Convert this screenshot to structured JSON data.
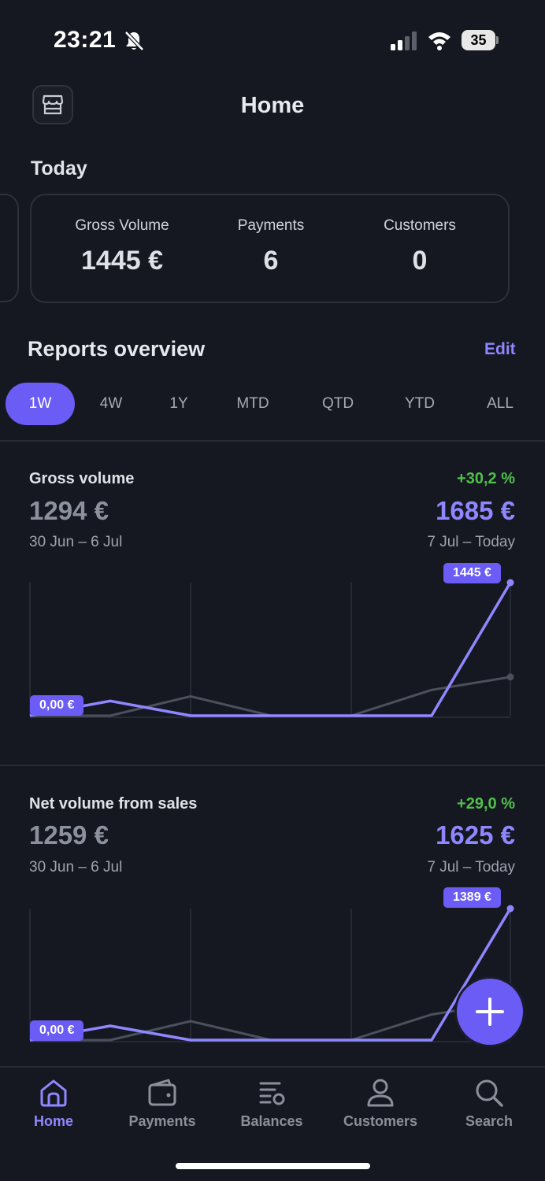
{
  "status_bar": {
    "time": "23:21",
    "battery": "35"
  },
  "header": {
    "title": "Home"
  },
  "today": {
    "heading": "Today",
    "stats": [
      {
        "label": "Gross Volume",
        "value": "1445 €"
      },
      {
        "label": "Payments",
        "value": "6"
      },
      {
        "label": "Customers",
        "value": "0"
      }
    ]
  },
  "reports": {
    "title": "Reports overview",
    "edit_label": "Edit",
    "periods": [
      "1W",
      "4W",
      "1Y",
      "MTD",
      "QTD",
      "YTD",
      "ALL"
    ],
    "active_period": "1W"
  },
  "metrics": [
    {
      "title": "Gross volume",
      "previous_value": "1294 €",
      "previous_range": "30 Jun – 6 Jul",
      "change": "+30,2 %",
      "current_value": "1685 €",
      "current_range": "7 Jul – Today",
      "start_tag": "0,00 €",
      "end_tag": "1445 €"
    },
    {
      "title": "Net volume from sales",
      "previous_value": "1259 €",
      "previous_range": "30 Jun – 6 Jul",
      "change": "+29,0 %",
      "current_value": "1625 €",
      "current_range": "7 Jul – Today",
      "start_tag": "0,00 €",
      "end_tag": "1389 €"
    }
  ],
  "chart_data": [
    {
      "type": "line",
      "x": [
        0,
        1,
        2,
        3,
        4,
        5,
        6
      ],
      "series": [
        {
          "values": [
            0,
            160,
            0,
            0,
            0,
            0,
            1445
          ]
        },
        {
          "values": [
            0,
            0,
            210,
            0,
            0,
            280,
            420
          ]
        }
      ],
      "ylim": [
        0,
        1445
      ]
    },
    {
      "type": "line",
      "x": [
        0,
        1,
        2,
        3,
        4,
        5,
        6
      ],
      "series": [
        {
          "values": [
            0,
            150,
            0,
            0,
            0,
            0,
            1389
          ]
        },
        {
          "values": [
            0,
            0,
            200,
            0,
            0,
            270,
            400
          ]
        }
      ],
      "ylim": [
        0,
        1389
      ]
    }
  ],
  "colors": {
    "accent": "#6b5cf5",
    "accent_text": "#8f87ff",
    "positive": "#4fc04a",
    "comparison_line": "#4a505c",
    "background": "#151821"
  },
  "tab_bar": {
    "items": [
      {
        "label": "Home",
        "icon": "home-icon"
      },
      {
        "label": "Payments",
        "icon": "wallet-icon"
      },
      {
        "label": "Balances",
        "icon": "balances-icon"
      },
      {
        "label": "Customers",
        "icon": "person-icon"
      },
      {
        "label": "Search",
        "icon": "search-icon"
      }
    ],
    "active": "Home"
  }
}
